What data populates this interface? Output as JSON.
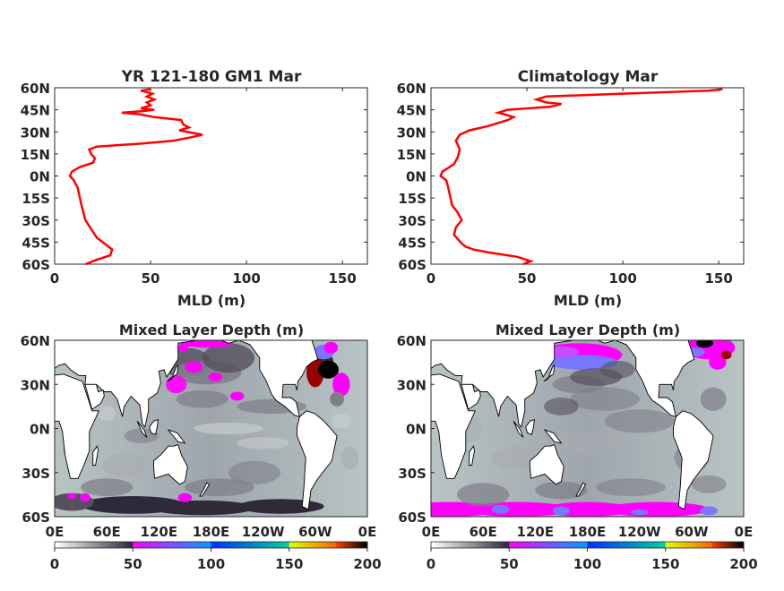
{
  "chart_data": [
    {
      "type": "line",
      "title": "YR 121-180 GM1 Mar",
      "xlabel": "MLD (m)",
      "ylabel": "",
      "xlim": [
        0,
        163
      ],
      "xticks": [
        "0",
        "50",
        "100",
        "150"
      ],
      "ylim": [
        -60,
        60
      ],
      "yticks": [
        "60N",
        "45N",
        "30N",
        "15N",
        "0N",
        "15S",
        "30S",
        "45S",
        "60S"
      ],
      "color": "#ff0000",
      "series": [
        {
          "lat": [
            -60,
            -57,
            -54,
            -50,
            -46,
            -42,
            -38,
            -34,
            -30,
            -25,
            -20,
            -14,
            -8,
            -3,
            0,
            3,
            6,
            9,
            12,
            15,
            18,
            20,
            22,
            24,
            26,
            28,
            29,
            31,
            33,
            35,
            38,
            40,
            42,
            43,
            44,
            45,
            46,
            48,
            50,
            52,
            54,
            56,
            58,
            59
          ],
          "mld": [
            16,
            22,
            29,
            30,
            26,
            22,
            20,
            18,
            16,
            15,
            14,
            13,
            12,
            10,
            8,
            9,
            13,
            20,
            21,
            19,
            18,
            22,
            45,
            62,
            70,
            77,
            73,
            65,
            70,
            67,
            66,
            52,
            44,
            35,
            45,
            52,
            45,
            50,
            48,
            52,
            48,
            51,
            45,
            50
          ]
        }
      ]
    },
    {
      "type": "line",
      "title": "Climatology Mar",
      "xlabel": "MLD (m)",
      "ylabel": "",
      "xlim": [
        0,
        163
      ],
      "xticks": [
        "0",
        "50",
        "100",
        "150"
      ],
      "ylim": [
        -60,
        60
      ],
      "yticks": [
        "60N",
        "45N",
        "30N",
        "15N",
        "0N",
        "15S",
        "30S",
        "45S",
        "60S"
      ],
      "color": "#ff0000",
      "series": [
        {
          "lat": [
            -60,
            -58,
            -55,
            -52,
            -50,
            -48,
            -46,
            -43,
            -40,
            -35,
            -30,
            -25,
            -20,
            -14,
            -8,
            -3,
            0,
            3,
            8,
            13,
            18,
            24,
            28,
            31,
            34,
            38,
            40,
            42,
            43,
            45,
            47,
            49,
            50,
            52,
            54,
            56,
            58,
            59
          ],
          "mld": [
            48,
            52,
            45,
            30,
            22,
            18,
            16,
            14,
            12,
            13,
            16,
            14,
            11,
            10,
            9,
            8,
            5,
            6,
            12,
            14,
            15,
            13,
            15,
            20,
            30,
            40,
            43,
            38,
            35,
            40,
            62,
            68,
            60,
            55,
            60,
            100,
            145,
            152
          ]
        }
      ]
    },
    {
      "type": "heatmap",
      "title": "Mixed Layer Depth (m)",
      "xticks": [
        "0E",
        "60E",
        "120E",
        "180E",
        "120W",
        "60W",
        "0E"
      ],
      "yticks": [
        "60N",
        "30N",
        "0N",
        "30S",
        "60S"
      ],
      "colorbar_ticks": [
        "0",
        "50",
        "100",
        "150",
        "200"
      ],
      "colorbar_range": [
        0,
        200
      ]
    },
    {
      "type": "heatmap",
      "title": "Mixed Layer Depth (m)",
      "xticks": [
        "0E",
        "60E",
        "120E",
        "180E",
        "120W",
        "60W",
        "0E"
      ],
      "yticks": [
        "60N",
        "30N",
        "0N",
        "30S",
        "60S"
      ],
      "colorbar_ticks": [
        "0",
        "50",
        "100",
        "150",
        "200"
      ],
      "colorbar_range": [
        0,
        200
      ]
    }
  ],
  "colormap": [
    "#ffffff",
    "#c8cccc",
    "#a8acb0",
    "#7e7e88",
    "#55505e",
    "#2e2a3a",
    "#ff00ff",
    "#c64cff",
    "#7878ff",
    "#0050ff",
    "#00c0ff",
    "#00e0a0",
    "#60ff60",
    "#ffff00",
    "#ff9000",
    "#ff0000",
    "#9a0000",
    "#000000"
  ]
}
